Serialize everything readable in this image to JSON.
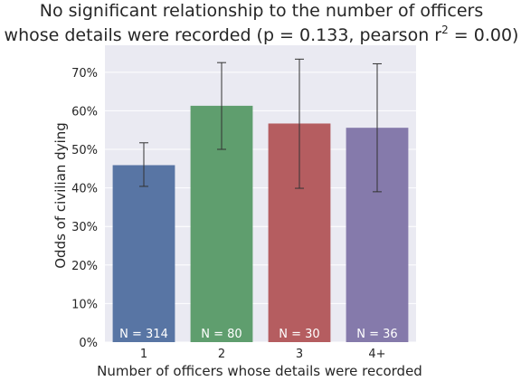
{
  "chart_data": {
    "type": "bar",
    "title_line1": "No significant relationship to the number of officers",
    "title_line2_prefix": "whose details were recorded (p = 0.133, pearson r",
    "title_line2_sup": "2",
    "title_line2_suffix": " = 0.00)",
    "xlabel": "Number of officers whose details were recorded",
    "ylabel": "Odds of civilian dying",
    "categories": [
      "1",
      "2",
      "3",
      "4+"
    ],
    "values": [
      0.459,
      0.613,
      0.567,
      0.556
    ],
    "error_low": [
      0.404,
      0.5,
      0.399,
      0.39
    ],
    "error_high": [
      0.517,
      0.725,
      0.734,
      0.722
    ],
    "bar_labels": [
      "N = 314",
      "N = 80",
      "N = 30",
      "N = 36"
    ],
    "colors": [
      "#5875a4",
      "#5f9e6e",
      "#b55d60",
      "#857aab"
    ],
    "ylim": [
      0,
      0.77
    ],
    "yticks": [
      0,
      0.1,
      0.2,
      0.3,
      0.4,
      0.5,
      0.6,
      0.7
    ],
    "ytick_labels": [
      "0%",
      "10%",
      "20%",
      "30%",
      "40%",
      "50%",
      "60%",
      "70%"
    ],
    "grid": true,
    "background": "#eaeaf2"
  }
}
